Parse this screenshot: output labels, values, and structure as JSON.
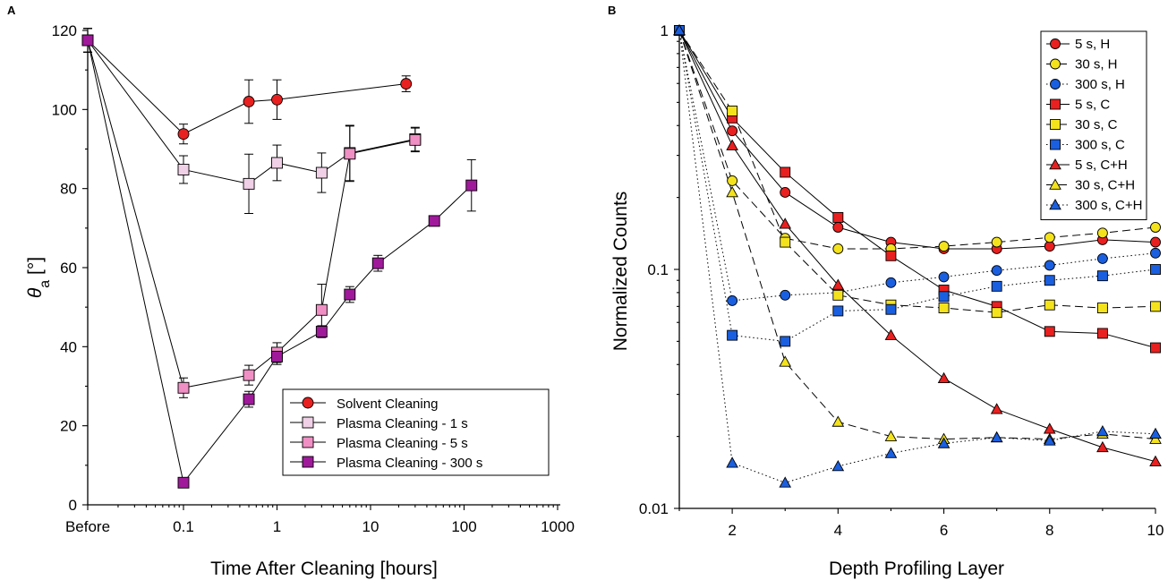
{
  "chart_data": [
    {
      "type": "line",
      "panel": "A",
      "x_scale": "log",
      "xlabel": "Time After Cleaning [hours]",
      "ylabel_main": "θ",
      "ylabel_sub": "a",
      "ylabel_unit": " [°]",
      "x_ticks": [
        "Before",
        "0.1",
        "1",
        "10",
        "100",
        "1000"
      ],
      "y_ticks": [
        "0",
        "20",
        "40",
        "60",
        "80",
        "100",
        "120"
      ],
      "ylim": [
        0,
        120
      ],
      "legend_position": "bottom-right",
      "series": [
        {
          "name": "Solvent Cleaning",
          "marker": "circle",
          "color": "#e8201f",
          "x": [
            "Before",
            0.1,
            0.5,
            1,
            24
          ],
          "y": [
            117.5,
            93.8,
            102,
            102.5,
            106.5
          ],
          "err": [
            3,
            2.5,
            5.5,
            5,
            2
          ]
        },
        {
          "name": "Plasma Cleaning - 1 s",
          "marker": "square",
          "color": "#f0d0e6",
          "x": [
            "Before",
            0.1,
            0.5,
            1,
            3,
            6,
            30
          ],
          "y": [
            117.5,
            84.8,
            81.2,
            86.5,
            84,
            89,
            92.5
          ],
          "err": [
            3,
            3.5,
            7.5,
            4.5,
            5,
            7,
            3
          ]
        },
        {
          "name": "Plasma Cleaning - 5 s",
          "marker": "square",
          "color": "#f08fc4",
          "x": [
            "Before",
            0.1,
            0.5,
            1,
            3,
            6,
            30
          ],
          "y": [
            117.5,
            29.6,
            32.8,
            38.5,
            49.3,
            88.8,
            92.3
          ],
          "err": [
            3,
            2.5,
            2.5,
            2.5,
            6.5,
            7,
            3
          ]
        },
        {
          "name": "Plasma Cleaning - 300 s",
          "marker": "square",
          "color": "#a0199b",
          "x": [
            "Before",
            0.1,
            0.5,
            1,
            3,
            6,
            12,
            48,
            120
          ],
          "y": [
            117.5,
            5.6,
            26.7,
            37.5,
            43.8,
            53.2,
            61.1,
            71.8,
            80.8
          ],
          "err": [
            3,
            0,
            2,
            2,
            1.5,
            2,
            2,
            0,
            6.5
          ]
        }
      ]
    },
    {
      "type": "line",
      "panel": "B",
      "y_scale": "log",
      "xlabel": "Depth Profiling Layer",
      "ylabel": "Normalized Counts",
      "x_ticks": [
        "2",
        "4",
        "6",
        "8",
        "10"
      ],
      "y_ticks": [
        "0.01",
        "0.1",
        "1"
      ],
      "xlim": [
        1,
        10
      ],
      "ylim": [
        0.01,
        1
      ],
      "legend_position": "top-right",
      "x": [
        1,
        2,
        3,
        4,
        5,
        6,
        7,
        8,
        9,
        10
      ],
      "series": [
        {
          "name": "5 s, H",
          "marker": "circle",
          "color": "#e8201f",
          "dash": "solid",
          "y": [
            1,
            0.38,
            0.21,
            0.15,
            0.13,
            0.122,
            0.122,
            0.125,
            0.133,
            0.13
          ]
        },
        {
          "name": "30 s, H",
          "marker": "circle",
          "color": "#f4e31c",
          "dash": "dash",
          "y": [
            1,
            0.235,
            0.135,
            0.122,
            0.122,
            0.125,
            0.13,
            0.136,
            0.142,
            0.15
          ]
        },
        {
          "name": "300 s, H",
          "marker": "circle",
          "color": "#1a5fe0",
          "dash": "dot",
          "y": [
            1,
            0.074,
            0.078,
            0.08,
            0.088,
            0.093,
            0.099,
            0.104,
            0.111,
            0.117
          ]
        },
        {
          "name": "5 s, C",
          "marker": "square",
          "color": "#e8201f",
          "dash": "solid",
          "y": [
            1,
            0.43,
            0.255,
            0.165,
            0.114,
            0.082,
            0.07,
            0.055,
            0.054,
            0.047
          ]
        },
        {
          "name": "30 s, C",
          "marker": "square",
          "color": "#f4e31c",
          "dash": "dash",
          "y": [
            1,
            0.46,
            0.13,
            0.078,
            0.071,
            0.069,
            0.066,
            0.071,
            0.069,
            0.07
          ]
        },
        {
          "name": "300 s, C",
          "marker": "square",
          "color": "#1a5fe0",
          "dash": "dot",
          "y": [
            1,
            0.053,
            0.05,
            0.067,
            0.068,
            0.077,
            0.085,
            0.09,
            0.094,
            0.1
          ]
        },
        {
          "name": "5 s, C+H",
          "marker": "triangle",
          "color": "#e8201f",
          "dash": "solid",
          "y": [
            1,
            0.33,
            0.155,
            0.086,
            0.053,
            0.035,
            0.026,
            0.0215,
            0.018,
            0.0157
          ]
        },
        {
          "name": "30 s, C+H",
          "marker": "triangle",
          "color": "#f4e31c",
          "dash": "dash",
          "y": [
            1,
            0.21,
            0.041,
            0.023,
            0.02,
            0.0195,
            0.0198,
            0.0195,
            0.0205,
            0.0195
          ]
        },
        {
          "name": "300 s, C+H",
          "marker": "triangle",
          "color": "#1a5fe0",
          "dash": "dot",
          "y": [
            1,
            0.0155,
            0.0128,
            0.015,
            0.017,
            0.0187,
            0.0198,
            0.0192,
            0.021,
            0.0205
          ]
        }
      ]
    }
  ]
}
